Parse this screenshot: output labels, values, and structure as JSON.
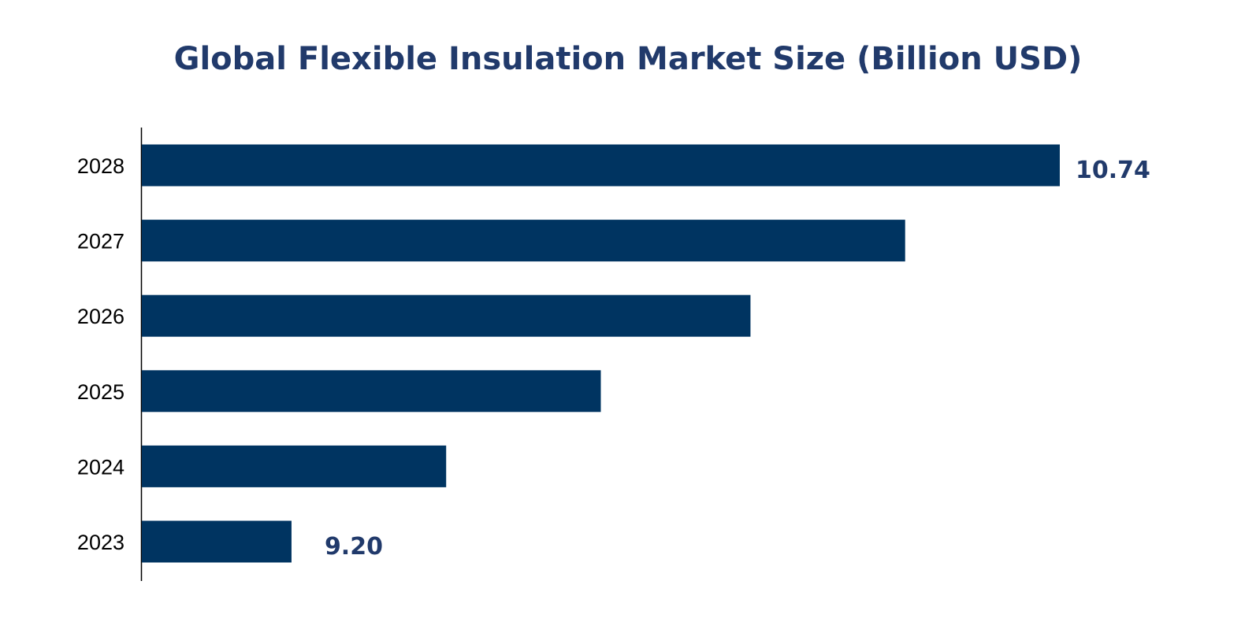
{
  "chart_data": {
    "type": "bar",
    "orientation": "horizontal",
    "title": "Global Flexible Insulation Market Size (Billion USD)",
    "categories": [
      "2023",
      "2024",
      "2025",
      "2026",
      "2027",
      "2028"
    ],
    "values": [
      9.2,
      9.51,
      9.82,
      10.12,
      10.43,
      10.74
    ],
    "data_labels": {
      "2023": "9.20",
      "2028": "10.74"
    },
    "xlabel": "",
    "ylabel": "",
    "xlim": [
      8.9,
      10.74
    ],
    "grid": false,
    "bar_color": "#003461",
    "label_color": "#213a6b"
  }
}
